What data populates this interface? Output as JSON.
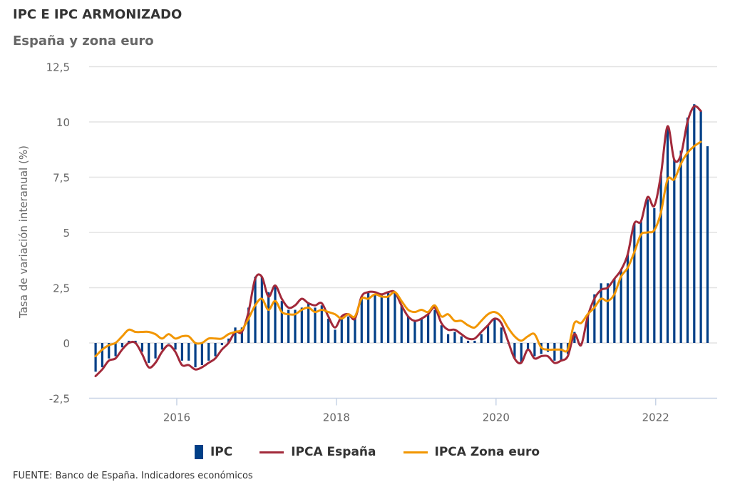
{
  "header": {
    "title": "IPC E IPC ARMONIZADO",
    "subtitle": "España y zona euro"
  },
  "source": "FUENTE: Banco de España. Indicadores económicos",
  "legend": [
    {
      "label": "IPC",
      "type": "bar",
      "color": "#003f87"
    },
    {
      "label": "IPCA España",
      "type": "line",
      "color": "#a2293a"
    },
    {
      "label": "IPCA Zona euro",
      "type": "line",
      "color": "#f29600"
    }
  ],
  "chart_data": {
    "type": "bar",
    "title": "IPC E IPC ARMONIZADO",
    "subtitle": "España y zona euro",
    "xlabel": "",
    "ylabel": "Tasa de variación interanual (%)",
    "ylim": [
      -2.5,
      12.5
    ],
    "yticks": [
      -2.5,
      0,
      2.5,
      5,
      7.5,
      10,
      12.5
    ],
    "ytick_labels": [
      "-2,5",
      "0",
      "2,5",
      "5",
      "7,5",
      "10",
      "12,5"
    ],
    "xticks": [
      "2016",
      "2018",
      "2020",
      "2022"
    ],
    "x_start": "2015-01",
    "grid": true,
    "legend_position": "bottom",
    "series": [
      {
        "name": "IPC",
        "type": "bar",
        "color": "#003f87",
        "values": [
          -1.3,
          -1.1,
          -0.7,
          -0.6,
          -0.2,
          0.1,
          0.1,
          -0.4,
          -0.9,
          -0.7,
          -0.3,
          0.0,
          -0.3,
          -0.8,
          -0.8,
          -1.1,
          -1.0,
          -0.8,
          -0.6,
          -0.1,
          0.2,
          0.7,
          0.7,
          1.6,
          3.0,
          3.0,
          2.3,
          2.6,
          1.9,
          1.5,
          1.5,
          1.6,
          1.8,
          1.6,
          1.7,
          1.1,
          0.6,
          1.1,
          1.2,
          1.1,
          2.1,
          2.3,
          2.2,
          2.2,
          2.3,
          2.3,
          1.7,
          1.2,
          1.0,
          1.1,
          1.3,
          1.5,
          0.8,
          0.4,
          0.5,
          0.3,
          0.1,
          0.1,
          0.4,
          0.8,
          1.1,
          0.7,
          0.0,
          -0.7,
          -0.9,
          -0.3,
          -0.6,
          -0.5,
          -0.4,
          -0.8,
          -0.8,
          -0.5,
          0.5,
          0.0,
          1.3,
          2.2,
          2.7,
          2.7,
          2.9,
          3.3,
          4.0,
          5.4,
          5.5,
          6.5,
          6.1,
          7.6,
          9.8,
          8.3,
          8.7,
          10.2,
          10.8,
          10.5,
          8.9
        ]
      },
      {
        "name": "IPCA España",
        "type": "line",
        "color": "#a2293a",
        "values": [
          -1.5,
          -1.2,
          -0.8,
          -0.7,
          -0.3,
          0.0,
          0.0,
          -0.5,
          -1.1,
          -0.9,
          -0.4,
          -0.1,
          -0.4,
          -1.0,
          -1.0,
          -1.2,
          -1.1,
          -0.9,
          -0.7,
          -0.3,
          0.0,
          0.5,
          0.5,
          1.4,
          2.9,
          3.0,
          2.1,
          2.6,
          2.0,
          1.6,
          1.7,
          2.0,
          1.8,
          1.7,
          1.8,
          1.2,
          0.7,
          1.2,
          1.3,
          1.1,
          2.1,
          2.3,
          2.3,
          2.2,
          2.3,
          2.3,
          1.7,
          1.2,
          1.0,
          1.1,
          1.3,
          1.6,
          0.9,
          0.6,
          0.6,
          0.4,
          0.2,
          0.2,
          0.5,
          0.8,
          1.1,
          0.9,
          0.1,
          -0.7,
          -0.9,
          -0.3,
          -0.7,
          -0.6,
          -0.6,
          -0.9,
          -0.8,
          -0.6,
          0.4,
          -0.1,
          1.2,
          2.0,
          2.4,
          2.5,
          2.9,
          3.3,
          4.0,
          5.4,
          5.5,
          6.6,
          6.2,
          7.6,
          9.8,
          8.3,
          8.5,
          10.0,
          10.7,
          10.5
        ]
      },
      {
        "name": "IPCA Zona euro",
        "type": "line",
        "color": "#f29600",
        "values": [
          -0.6,
          -0.3,
          -0.1,
          0.0,
          0.3,
          0.6,
          0.5,
          0.5,
          0.5,
          0.4,
          0.2,
          0.4,
          0.2,
          0.3,
          0.3,
          0.0,
          0.0,
          0.2,
          0.2,
          0.2,
          0.4,
          0.5,
          0.6,
          1.1,
          1.7,
          2.0,
          1.5,
          1.9,
          1.4,
          1.3,
          1.3,
          1.5,
          1.6,
          1.4,
          1.5,
          1.4,
          1.3,
          1.1,
          1.3,
          1.2,
          2.0,
          2.0,
          2.2,
          2.1,
          2.1,
          2.3,
          1.9,
          1.5,
          1.4,
          1.5,
          1.4,
          1.7,
          1.2,
          1.3,
          1.0,
          1.0,
          0.8,
          0.7,
          1.0,
          1.3,
          1.4,
          1.2,
          0.7,
          0.3,
          0.1,
          0.3,
          0.4,
          -0.2,
          -0.3,
          -0.3,
          -0.3,
          -0.3,
          0.9,
          0.9,
          1.3,
          1.6,
          2.0,
          1.9,
          2.2,
          3.0,
          3.4,
          4.1,
          4.9,
          5.0,
          5.1,
          5.9,
          7.4,
          7.4,
          8.1,
          8.6,
          8.9,
          9.1
        ]
      }
    ]
  }
}
